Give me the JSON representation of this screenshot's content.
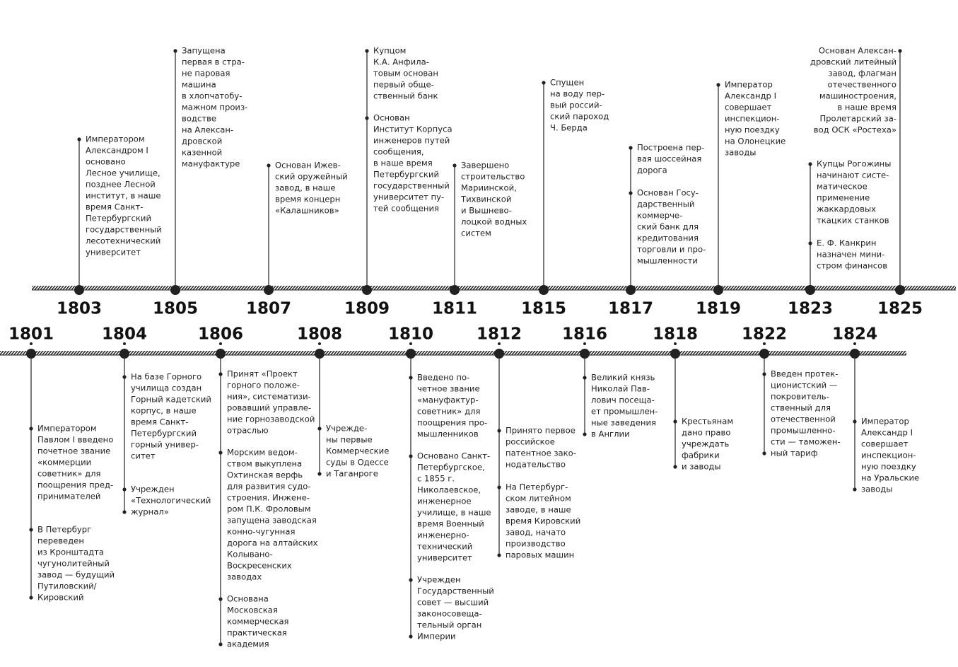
{
  "top": [
    {
      "year": "1803",
      "events": [
        [
          "Императором",
          "Александром I",
          "основано",
          "Лесное училище,",
          "позднее Лесной",
          "институт, в наше",
          "время Санкт-",
          "Петербургский",
          "государственный",
          "лесотехнический",
          "университет"
        ]
      ]
    },
    {
      "year": "1805",
      "events": [
        [
          "Запущена",
          "первая в стра-",
          "не паровая",
          "машина",
          "в хлопчатобу-",
          "мажном произ-",
          "водстве",
          "на Алексан-",
          "дровской",
          "казенной",
          "мануфактуре"
        ]
      ]
    },
    {
      "year": "1807",
      "events": [
        [
          "Основан Ижев-",
          "ский оружейный",
          "завод, в наше",
          "время концерн",
          "«Калашников»"
        ]
      ]
    },
    {
      "year": "1809",
      "events": [
        [
          "Купцом",
          "К.А. Анфила-",
          "товым основан",
          "первый обще-",
          "ственный банк"
        ],
        [
          "Основан",
          "Институт Корпуса",
          "инженеров путей",
          "сообщения,",
          "в наше время",
          "Петербургский",
          "государственный",
          "университет пу-",
          "тей сообщения"
        ]
      ]
    },
    {
      "year": "1811",
      "events": [
        [
          "Завершено",
          "строительство",
          "Мариинской,",
          "Тихвинской",
          "и Вышнево-",
          "лоцкой водных",
          "систем"
        ]
      ]
    },
    {
      "year": "1815",
      "events": [
        [
          "Спущен",
          "на воду пер-",
          "вый россий-",
          "ский пароход",
          "Ч. Берда"
        ]
      ]
    },
    {
      "year": "1817",
      "events": [
        [
          "Построена пер-",
          "вая шоссейная",
          "дорога"
        ],
        [
          "Основан Госу-",
          "дарственный",
          "коммерче-",
          "ский банк для",
          "кредитования",
          "торговли и про-",
          "мышленности"
        ]
      ]
    },
    {
      "year": "1819",
      "events": [
        [
          "Император",
          "Александр I",
          "совершает",
          "инспекцион-",
          "ную поездку",
          "на Олонецкие",
          "заводы"
        ]
      ]
    },
    {
      "year": "1823",
      "events": [
        [
          "Купцы Рогожины",
          "начинают систе-",
          "матическое",
          "применение",
          "жаккардовых",
          "ткацких станков"
        ],
        [
          "Е. Ф. Канкрин",
          "назначен мини-",
          "стром финансов"
        ]
      ]
    },
    {
      "year": "1825",
      "events": [
        [
          "Основан Алексан-",
          "дровский литейный",
          "завод, флагман",
          "отечественного",
          "машиностроения,",
          "в наше время",
          "Пролетарский за-",
          "вод ОСК «Ростеха»"
        ]
      ]
    }
  ],
  "bottom": [
    {
      "year": "1801",
      "events": [
        [
          "Императором",
          "Павлом I введено",
          "почетное звание",
          "«коммерции",
          "советник» для",
          "поощрения пред-",
          "принимателей"
        ],
        [
          "В Петербург",
          "переведен",
          "из Кронштадта",
          "чугунолитейный",
          "завод — будущий",
          "Путиловский/",
          "Кировский"
        ]
      ]
    },
    {
      "year": "1804",
      "events": [
        [
          "На базе Горного",
          "училища создан",
          "Горный кадетский",
          "корпус, в наше",
          "время Санкт-",
          "Петербургский",
          "горный универ-",
          "ситет"
        ],
        [
          "Учрежден",
          "«Технологический",
          "журнал»"
        ]
      ]
    },
    {
      "year": "1806",
      "events": [
        [
          "Принят «Проект",
          "горного положе-",
          "ния», систематизи-",
          "ровавший управле-",
          "ние горнозаводской",
          "отраслью"
        ],
        [
          "Морским ведом-",
          "ством выкуплена",
          "Охтинская верфь",
          "для развития судо-",
          "строения. Инжене-",
          "ром П.К. Фроловым",
          "запущена заводская",
          "конно-чугунная",
          "дорога на алтайских",
          "Колывано-",
          "Воскресенских",
          "заводах"
        ],
        [
          "Основана",
          "Московская",
          "коммерческая",
          "практическая",
          "академия"
        ]
      ]
    },
    {
      "year": "1808",
      "events": [
        [
          "Учрежде-",
          "ны первые",
          "Коммерческие",
          "суды в Одессе",
          "и Таганроге"
        ]
      ]
    },
    {
      "year": "1810",
      "events": [
        [
          "Введено по-",
          "четное звание",
          "«мануфактур-",
          "советник» для",
          "поощрения про-",
          "мышленников"
        ],
        [
          "Основано Санкт-",
          "Петербургское,",
          "с 1855 г.",
          "Николаевское,",
          "инженерное",
          "училище, в наше",
          "время Военный",
          "инженерно-",
          "технический",
          "университет"
        ],
        [
          "Учрежден",
          "Государственный",
          "совет — высший",
          "законосовеща-",
          "тельный орган",
          "Империи"
        ]
      ]
    },
    {
      "year": "1812",
      "events": [
        [
          "Принято первое",
          "российское",
          "патентное зако-",
          "нодательство"
        ],
        [
          "На Петербург-",
          "ском литейном",
          "заводе, в наше",
          "время Кировский",
          "завод, начато",
          "производство",
          "паровых машин"
        ]
      ]
    },
    {
      "year": "1816",
      "events": [
        [
          "Великий князь",
          "Николай Пав-",
          "лович посеща-",
          "ет промышлен-",
          "ные заведения",
          "в Англии"
        ]
      ]
    },
    {
      "year": "1818",
      "events": [
        [
          "Крестьянам",
          "дано право",
          "учреждать",
          "фабрики",
          "и заводы"
        ]
      ]
    },
    {
      "year": "1822",
      "events": [
        [
          "Введен протек-",
          "ционистский —",
          "покровитель-",
          "ственный для",
          "отечественной",
          "промышленно-",
          "сти — таможен-",
          "ный тариф"
        ]
      ]
    },
    {
      "year": "1824",
      "events": [
        [
          "Император",
          "Александр I",
          "совершает",
          "инспекцион-",
          "ную поездку",
          "на Уральские",
          "заводы"
        ]
      ]
    }
  ]
}
